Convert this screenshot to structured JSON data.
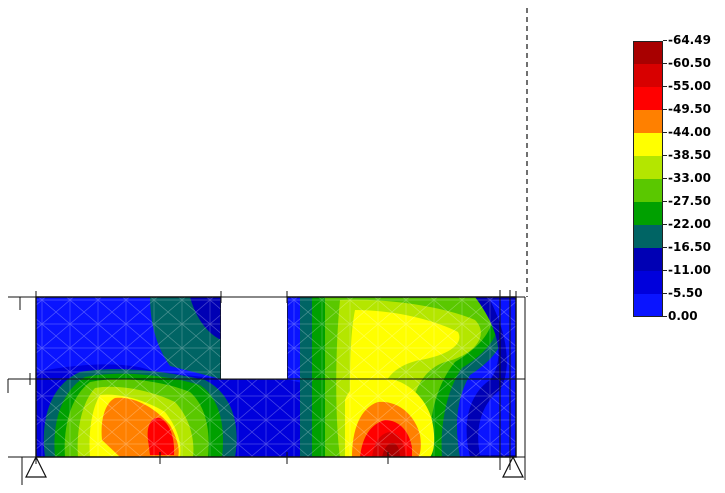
{
  "legend": {
    "colors": [
      "#a80000",
      "#d80000",
      "#ff0000",
      "#ff8000",
      "#ffff00",
      "#b4e600",
      "#5ac800",
      "#00a000",
      "#006464",
      "#0000b4",
      "#0000dc",
      "#0a14ff"
    ],
    "labels": [
      "-64.49",
      "-60.50",
      "-55.00",
      "-49.50",
      "-44.00",
      "-38.50",
      "-33.00",
      "-27.50",
      "-22.00",
      "-16.50",
      "-11.00",
      "-5.50"
    ],
    "bottom_label": "0.00"
  }
}
